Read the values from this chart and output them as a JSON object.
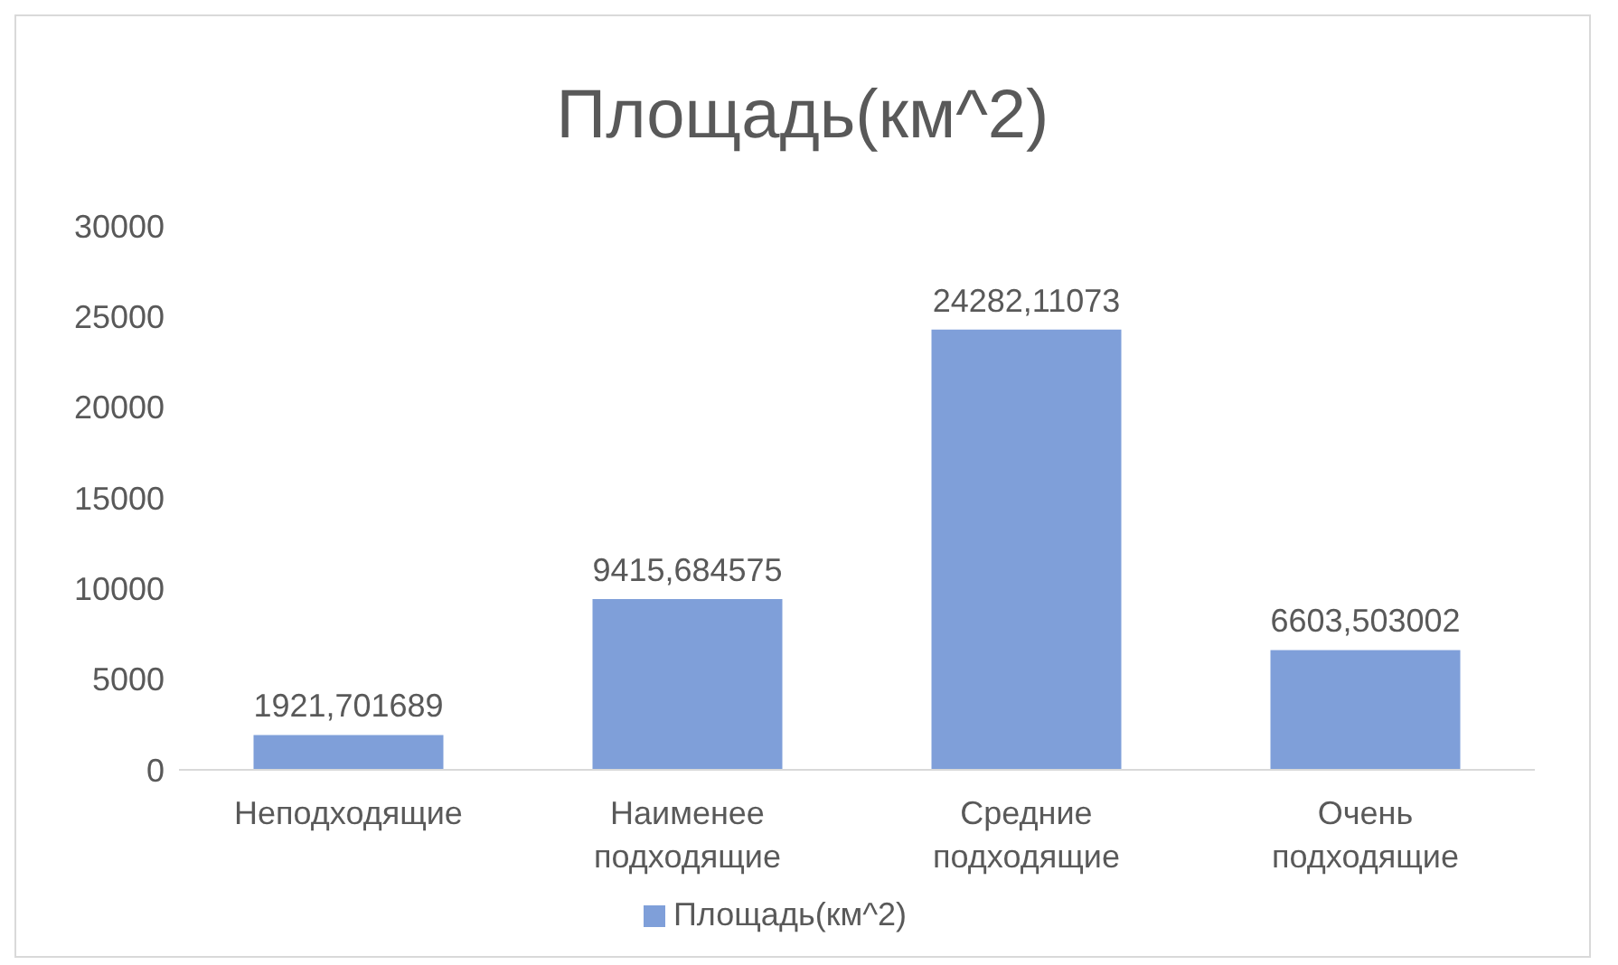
{
  "chart_data": {
    "type": "bar",
    "title": "Площадь(км^2)",
    "categories": [
      "Неподходящие",
      "Наименее подходящие",
      "Средние подходящие",
      "Очень подходящие"
    ],
    "series": [
      {
        "name": "Площадь(км^2)",
        "color": "#7f9fd9",
        "values": [
          1921.701689,
          9415.684575,
          24282.11073,
          6603.503002
        ],
        "value_labels": [
          "1921,701689",
          "9415,684575",
          "24282,11073",
          "6603,503002"
        ]
      }
    ],
    "ylim": [
      0,
      30000
    ],
    "yticks": [
      0,
      5000,
      10000,
      15000,
      20000,
      25000,
      30000
    ],
    "grid": false,
    "legend": "bottom"
  }
}
